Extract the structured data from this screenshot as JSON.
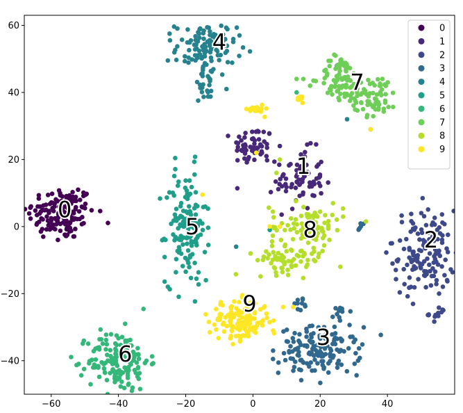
{
  "chart_data": {
    "type": "scatter",
    "title": "",
    "xlabel": "",
    "ylabel": "",
    "xlim": [
      -68,
      60
    ],
    "ylim": [
      -50,
      63
    ],
    "xticks": [
      -60,
      -40,
      -20,
      0,
      20,
      40
    ],
    "yticks": [
      -40,
      -20,
      0,
      20,
      40,
      60
    ],
    "legend_position": "top-right",
    "series": [
      {
        "name": "0",
        "color": "#440154",
        "clusters": [
          {
            "cx": -57,
            "cy": 4,
            "sx": 5,
            "sy": 4,
            "n": 150
          }
        ],
        "extra_points": [
          [
            -66,
            6
          ],
          [
            -58,
            -4
          ],
          [
            -52,
            11
          ]
        ]
      },
      {
        "name": "1",
        "color": "#482878",
        "clusters": [
          {
            "cx": 0,
            "cy": 24,
            "sx": 3,
            "sy": 3,
            "n": 55
          },
          {
            "cx": 14,
            "cy": 14,
            "sx": 3.5,
            "sy": 4.5,
            "n": 75
          }
        ],
        "extra_points": [
          [
            8,
            24
          ],
          [
            4,
            21
          ]
        ]
      },
      {
        "name": "2",
        "color": "#3e4989",
        "clusters": [
          {
            "cx": 51,
            "cy": -8,
            "sx": 4.5,
            "sy": 6.5,
            "n": 140
          },
          {
            "cx": 55,
            "cy": -26,
            "sx": 1.3,
            "sy": 1.0,
            "n": 12
          }
        ],
        "extra_points": [
          [
            41,
            -5
          ],
          [
            47,
            -18
          ]
        ]
      },
      {
        "name": "3",
        "color": "#31688e",
        "clusters": [
          {
            "cx": 20,
            "cy": -37,
            "sx": 6,
            "sy": 3.5,
            "n": 150
          },
          {
            "cx": 14,
            "cy": -23,
            "sx": 1,
            "sy": 1,
            "n": 10
          },
          {
            "cx": 26,
            "cy": -25,
            "sx": 1,
            "sy": 2,
            "n": 10
          },
          {
            "cx": 32,
            "cy": 0,
            "sx": 0.6,
            "sy": 0.6,
            "n": 6
          }
        ],
        "extra_points": [
          [
            6,
            -37
          ],
          [
            12,
            -43
          ]
        ]
      },
      {
        "name": "4",
        "color": "#26828e",
        "clusters": [
          {
            "cx": -14,
            "cy": 53,
            "sx": 4.5,
            "sy": 4,
            "n": 110
          },
          {
            "cx": -14,
            "cy": 42,
            "sx": 2,
            "sy": 2,
            "n": 20
          }
        ],
        "extra_points": [
          [
            -4,
            57
          ],
          [
            -5,
            -6
          ],
          [
            25,
            48
          ],
          [
            28,
            32
          ],
          [
            35,
            29
          ]
        ]
      },
      {
        "name": "5",
        "color": "#1f9e89",
        "clusters": [
          {
            "cx": -20,
            "cy": 0,
            "sx": 3,
            "sy": 8.5,
            "n": 140
          }
        ],
        "extra_points": [
          [
            -26,
            -4
          ],
          [
            -14,
            -16
          ],
          [
            5,
            -1
          ]
        ]
      },
      {
        "name": "6",
        "color": "#35b779",
        "clusters": [
          {
            "cx": -40,
            "cy": -40,
            "sx": 4.5,
            "sy": 4.5,
            "n": 150
          }
        ],
        "extra_points": [
          [
            -38,
            -29
          ],
          [
            -36,
            -49
          ],
          [
            13,
            40
          ]
        ]
      },
      {
        "name": "7",
        "color": "#6ece58",
        "clusters": [
          {
            "cx": 26,
            "cy": 44,
            "sx": 3,
            "sy": 3.5,
            "n": 75
          },
          {
            "cx": 36,
            "cy": 39,
            "sx": 3.5,
            "sy": 3,
            "n": 70
          }
        ],
        "extra_points": [
          [
            15,
            44
          ],
          [
            17,
            42
          ],
          [
            13,
            44
          ]
        ]
      },
      {
        "name": "8",
        "color": "#b5de2b",
        "clusters": [
          {
            "cx": 16,
            "cy": 0,
            "sx": 5.5,
            "sy": 3.5,
            "n": 90
          },
          {
            "cx": 11,
            "cy": -10,
            "sx": 5,
            "sy": 2,
            "n": 60
          }
        ],
        "extra_points": [
          [
            8,
            20
          ],
          [
            7,
            16
          ],
          [
            26,
            -12
          ]
        ]
      },
      {
        "name": "9",
        "color": "#fde725",
        "clusters": [
          {
            "cx": -4,
            "cy": -28,
            "sx": 4.5,
            "sy": 3,
            "n": 140
          },
          {
            "cx": 1,
            "cy": 35,
            "sx": 1.2,
            "sy": 0.8,
            "n": 20
          },
          {
            "cx": 14,
            "cy": 38,
            "sx": 0.8,
            "sy": 0.5,
            "n": 8
          }
        ],
        "extra_points": [
          [
            -15,
            9.5
          ],
          [
            6,
            -31
          ],
          [
            9,
            -24
          ],
          [
            12,
            -24
          ],
          [
            1,
            22
          ],
          [
            5,
            0
          ],
          [
            8,
            0
          ],
          [
            35,
            29
          ]
        ]
      }
    ],
    "annotations": [
      {
        "text": "0",
        "x": -56,
        "y": 5
      },
      {
        "text": "1",
        "x": 15,
        "y": 18
      },
      {
        "text": "2",
        "x": 53,
        "y": -4
      },
      {
        "text": "3",
        "x": 21,
        "y": -33
      },
      {
        "text": "4",
        "x": -10,
        "y": 55
      },
      {
        "text": "5",
        "x": -18,
        "y": 0
      },
      {
        "text": "6",
        "x": -38,
        "y": -38
      },
      {
        "text": "7",
        "x": 31,
        "y": 43
      },
      {
        "text": "8",
        "x": 17,
        "y": -1
      },
      {
        "text": "9",
        "x": -1,
        "y": -23
      }
    ]
  }
}
